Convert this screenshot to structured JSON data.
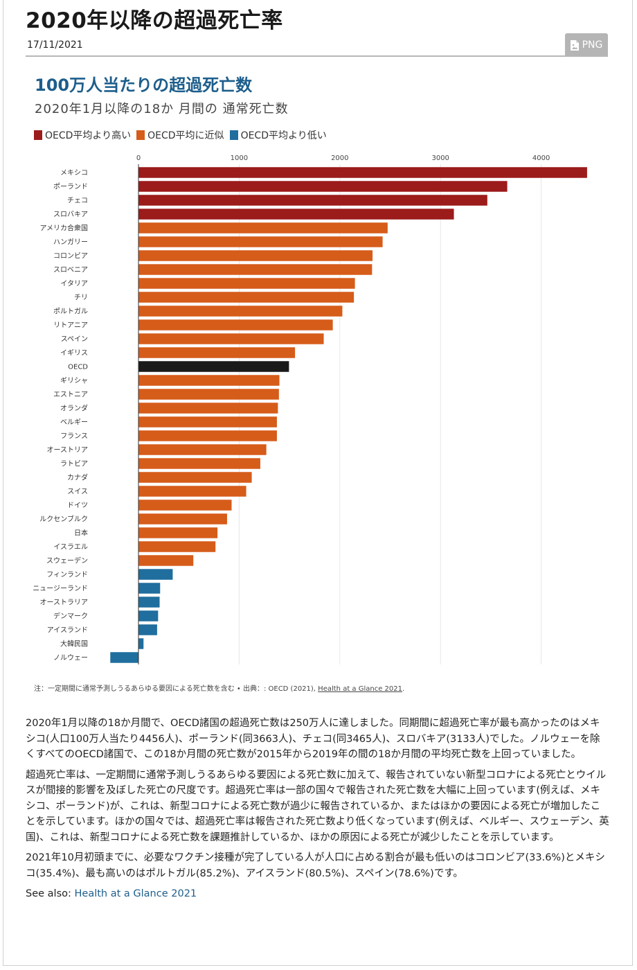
{
  "header": {
    "title": "2020年以降の超過死亡率",
    "date": "17/11/2021",
    "png_label": "PNG"
  },
  "colors": {
    "above": "#9c1b1b",
    "near": "#d65c1a",
    "below": "#1f6e9e",
    "oecd": "#1a1a1a",
    "title": "#1d5e8c"
  },
  "chart_data": {
    "type": "bar",
    "orientation": "horizontal",
    "title": "100万人当たりの超過死亡数",
    "subtitle": "2020年1月以降の18か 月間の 通常死亡数",
    "legend": [
      {
        "label": "OECD平均より高い",
        "color": "#9c1b1b"
      },
      {
        "label": "OECD平均に近似",
        "color": "#d65c1a"
      },
      {
        "label": "OECD平均より低い",
        "color": "#1f6e9e"
      }
    ],
    "xlim": [
      -300,
      4650
    ],
    "xticks": [
      0,
      1000,
      2000,
      3000,
      4000
    ],
    "grid": true,
    "categories": [
      "メキシコ",
      "ポーランド",
      "チェコ",
      "スロバキア",
      "アメリカ合衆国",
      "ハンガリー",
      "コロンビア",
      "スロベニア",
      "イタリア",
      "チリ",
      "ポルトガル",
      "リトアニア",
      "スペイン",
      "イギリス",
      "OECD",
      "ギリシャ",
      "エストニア",
      "オランダ",
      "ベルギー",
      "フランス",
      "オーストリア",
      "ラトビア",
      "カナダ",
      "スイス",
      "ドイツ",
      "ルクセンブルク",
      "日本",
      "イスラエル",
      "スウェーデン",
      "フィンランド",
      "ニュージーランド",
      "オーストラリア",
      "デンマーク",
      "アイスランド",
      "大韓民国",
      "ノルウェー"
    ],
    "values": [
      4456,
      3663,
      3465,
      3133,
      2475,
      2425,
      2325,
      2320,
      2150,
      2140,
      2025,
      1930,
      1840,
      1555,
      1495,
      1400,
      1395,
      1385,
      1375,
      1375,
      1270,
      1210,
      1125,
      1070,
      925,
      880,
      785,
      765,
      545,
      340,
      215,
      210,
      195,
      185,
      50,
      -280
    ],
    "groups": [
      "above",
      "above",
      "above",
      "above",
      "near",
      "near",
      "near",
      "near",
      "near",
      "near",
      "near",
      "near",
      "near",
      "near",
      "oecd",
      "near",
      "near",
      "near",
      "near",
      "near",
      "near",
      "near",
      "near",
      "near",
      "near",
      "near",
      "near",
      "near",
      "near",
      "below",
      "below",
      "below",
      "below",
      "below",
      "below",
      "below"
    ]
  },
  "footnote": {
    "text": "注：一定期間に通常予測しうるあらゆる要因による死亡数を含む • 出典：: OECD (2021), ",
    "link": "Health at a Glance 2021",
    "end": "."
  },
  "body": {
    "p1": "2020年1月以降の18か月間で、OECD諸国の超過死亡数は250万人に達しました。同期間に超過死亡率が最も高かったのはメキシコ(人口100万人当たり4456人)、ポーランド(同3663人)、チェコ(同3465人)、スロバキア(3133人)でした。ノルウェーを除くすべてのOECD諸国で、この18か月間の死亡数が2015年から2019年の間の18か月間の平均死亡数を上回っていました。",
    "p2": "超過死亡率は、一定期間に通常予測しうるあらゆる要因による死亡数に加えて、報告されていない新型コロナによる死亡とウイルスが間接的影響を及ぼした死亡の尺度です。超過死亡率は一部の国々で報告された死亡数を大幅に上回っています(例えば、メキシコ、ポーランド)が、これは、新型コロナによる死亡数が過少に報告されているか、またはほかの要因による死亡が増加したことを示しています。ほかの国々では、超過死亡率は報告された死亡数より低くなっています(例えば、ベルギー、スウェーデン、英国)、これは、新型コロナによる死亡数を課題推計しているか、ほかの原因による死亡が減少したことを示しています。",
    "p3": "2021年10月初頭までに、必要なワクチン接種が完了している人が人口に占める割合が最も低いのはコロンビア(33.6%)とメキシコ(35.4%)、最も高いのはポルトガル(85.2%)、アイスランド(80.5%)、スペイン(78.6%)です。",
    "see_also_label": "See also: ",
    "see_also_link": "Health at a Glance 2021"
  }
}
